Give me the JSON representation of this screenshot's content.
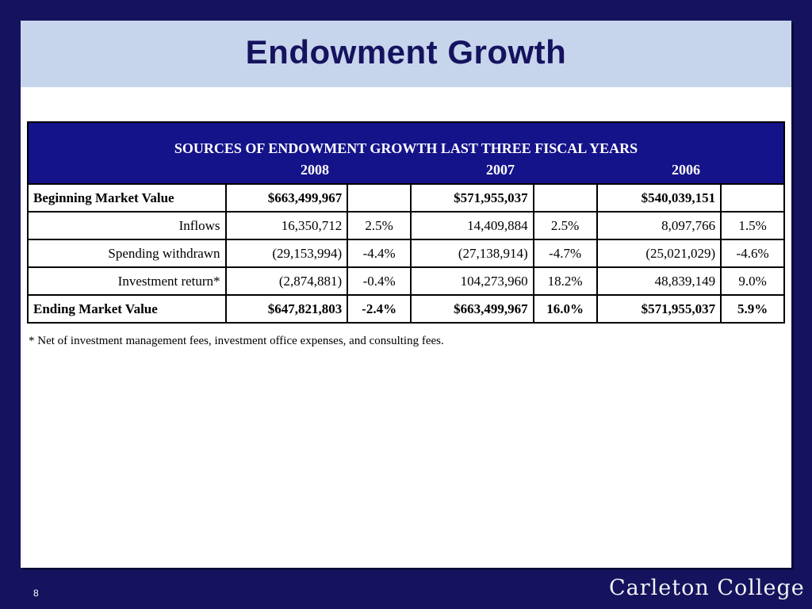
{
  "slide": {
    "title": "Endowment Growth",
    "page_number": "8",
    "logo_text": "Carleton College"
  },
  "table": {
    "heading": "SOURCES OF ENDOWMENT GROWTH LAST THREE FISCAL YEARS",
    "years": [
      "2008",
      "2007",
      "2006"
    ],
    "rows": [
      {
        "label": "Beginning Market Value",
        "bold": true,
        "values": [
          "$663,499,967",
          "",
          "$571,955,037",
          "",
          "$540,039,151",
          ""
        ]
      },
      {
        "label": "Inflows",
        "bold": false,
        "values": [
          "16,350,712",
          "2.5%",
          "14,409,884",
          "2.5%",
          "8,097,766",
          "1.5%"
        ]
      },
      {
        "label": "Spending withdrawn",
        "bold": false,
        "values": [
          "(29,153,994)",
          "-4.4%",
          "(27,138,914)",
          "-4.7%",
          "(25,021,029)",
          "-4.6%"
        ]
      },
      {
        "label": "Investment return*",
        "bold": false,
        "values": [
          "(2,874,881)",
          "-0.4%",
          "104,273,960",
          "18.2%",
          "48,839,149",
          "9.0%"
        ]
      },
      {
        "label": "Ending Market Value",
        "bold": true,
        "values": [
          "$647,821,803",
          "-2.4%",
          "$663,499,967",
          "16.0%",
          "$571,955,037",
          "5.9%"
        ]
      }
    ],
    "footnote": "* Net of investment management fees, investment office expenses, and consulting fees."
  },
  "colors": {
    "background": "#15135e",
    "title_bar": "#c7d5ec",
    "table_header": "#15138a"
  }
}
